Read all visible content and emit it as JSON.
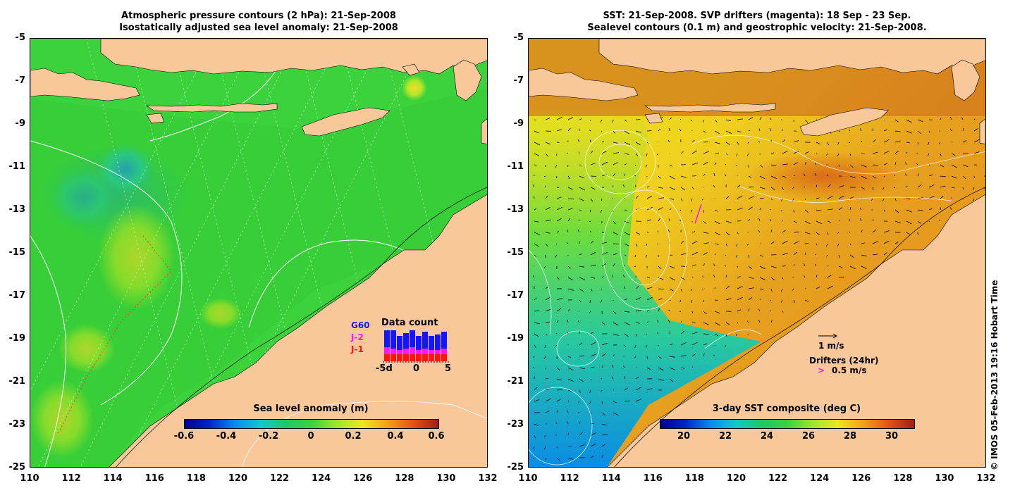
{
  "left": {
    "title_line1": "Atmospheric pressure contours (2 hPa): 21-Sep-2008",
    "title_line2": "Isostatically adjusted sea level anomaly: 21-Sep-2008",
    "colorbar_title": "Sea level anomaly (m)",
    "colorbar_ticks": [
      "-0.6",
      "-0.4",
      "-0.2",
      "0",
      "0.2",
      "0.4",
      "0.6"
    ],
    "legend_missions": [
      {
        "label": "G60",
        "color": "#1414ff"
      },
      {
        "label": "J-2",
        "color": "#ff14ff"
      },
      {
        "label": "J-1",
        "color": "#ff1414"
      }
    ],
    "inset_title": "Data count",
    "inset_ticks": [
      "-5d",
      "0",
      "5"
    ]
  },
  "right": {
    "title_line1": "SST: 21-Sep-2008. SVP drifters (magenta): 18 Sep - 23 Sep.",
    "title_line2": "Sealevel contours (0.1 m) and geostrophic velocity: 21-Sep-2008.",
    "colorbar_title": "3-day SST composite (deg C)",
    "colorbar_ticks": [
      "20",
      "22",
      "24",
      "26",
      "28",
      "30"
    ],
    "velocity_label": "1 m/s",
    "drifters_label": "Drifters (24hr)",
    "drifter_speed_label": "0.5 m/s"
  },
  "axes": {
    "x_ticks": [
      "110",
      "112",
      "114",
      "116",
      "118",
      "120",
      "122",
      "124",
      "126",
      "128",
      "130",
      "132"
    ],
    "y_ticks": [
      "-5",
      "-7",
      "-9",
      "-11",
      "-13",
      "-15",
      "-17",
      "-19",
      "-21",
      "-23",
      "-25"
    ]
  },
  "credit": "© IMOS 05-Feb-2013 19:16 Hobart Time",
  "colors": {
    "land": "#f8c89a",
    "ocean_anomaly_base": "#28d228",
    "sst_warm": "#e8a01e",
    "sst_cool": "#f0e61e"
  }
}
